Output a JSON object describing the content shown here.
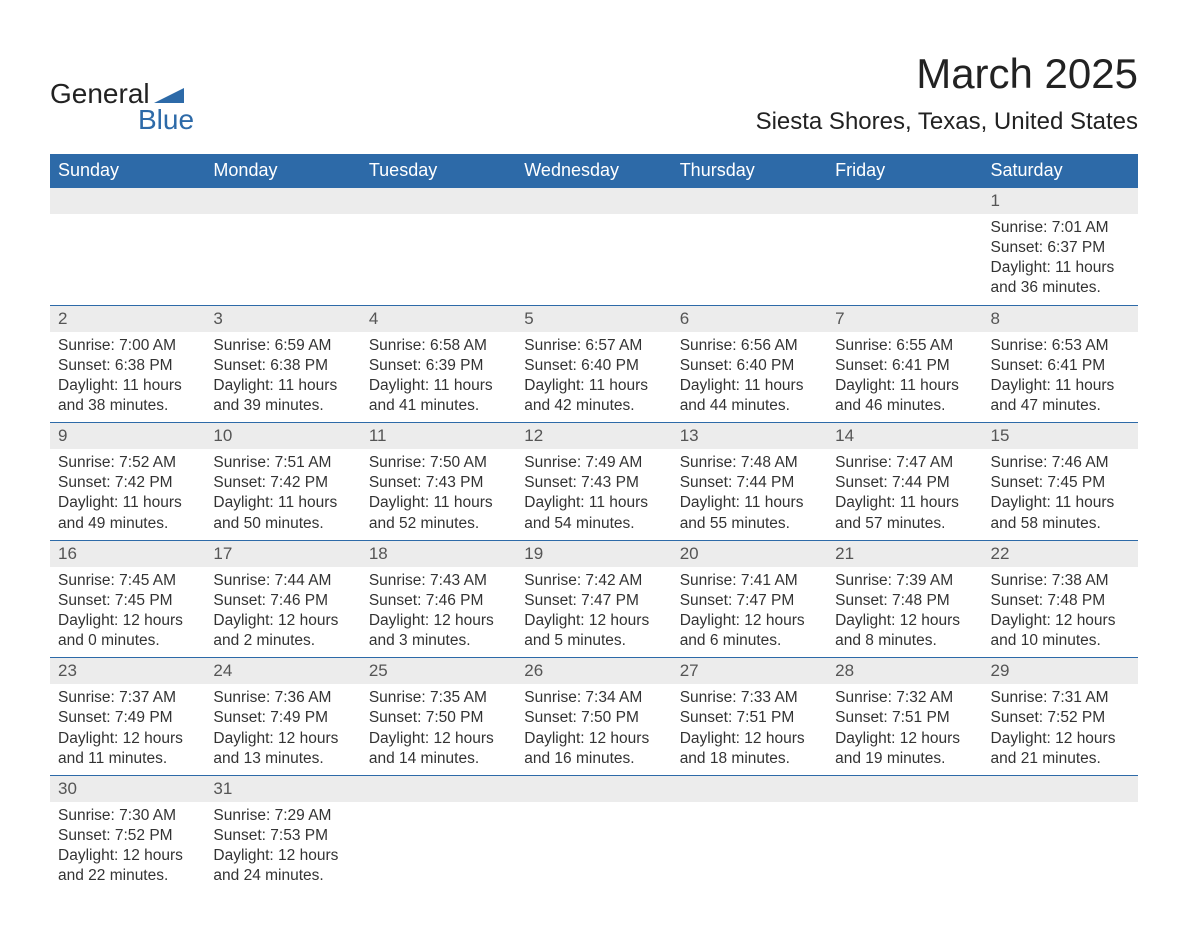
{
  "logo": {
    "line1": "General",
    "line2": "Blue",
    "accent_color": "#2d6aa8"
  },
  "title": "March 2025",
  "location": "Siesta Shores, Texas, United States",
  "colors": {
    "header_bg": "#2d6aa8",
    "header_text": "#ffffff",
    "daynum_bg": "#ececec",
    "text": "#333333",
    "border": "#2d6aa8"
  },
  "weekdays": [
    "Sunday",
    "Monday",
    "Tuesday",
    "Wednesday",
    "Thursday",
    "Friday",
    "Saturday"
  ],
  "weeks": [
    [
      null,
      null,
      null,
      null,
      null,
      null,
      {
        "d": "1",
        "sr": "Sunrise: 7:01 AM",
        "ss": "Sunset: 6:37 PM",
        "dl1": "Daylight: 11 hours",
        "dl2": "and 36 minutes."
      }
    ],
    [
      {
        "d": "2",
        "sr": "Sunrise: 7:00 AM",
        "ss": "Sunset: 6:38 PM",
        "dl1": "Daylight: 11 hours",
        "dl2": "and 38 minutes."
      },
      {
        "d": "3",
        "sr": "Sunrise: 6:59 AM",
        "ss": "Sunset: 6:38 PM",
        "dl1": "Daylight: 11 hours",
        "dl2": "and 39 minutes."
      },
      {
        "d": "4",
        "sr": "Sunrise: 6:58 AM",
        "ss": "Sunset: 6:39 PM",
        "dl1": "Daylight: 11 hours",
        "dl2": "and 41 minutes."
      },
      {
        "d": "5",
        "sr": "Sunrise: 6:57 AM",
        "ss": "Sunset: 6:40 PM",
        "dl1": "Daylight: 11 hours",
        "dl2": "and 42 minutes."
      },
      {
        "d": "6",
        "sr": "Sunrise: 6:56 AM",
        "ss": "Sunset: 6:40 PM",
        "dl1": "Daylight: 11 hours",
        "dl2": "and 44 minutes."
      },
      {
        "d": "7",
        "sr": "Sunrise: 6:55 AM",
        "ss": "Sunset: 6:41 PM",
        "dl1": "Daylight: 11 hours",
        "dl2": "and 46 minutes."
      },
      {
        "d": "8",
        "sr": "Sunrise: 6:53 AM",
        "ss": "Sunset: 6:41 PM",
        "dl1": "Daylight: 11 hours",
        "dl2": "and 47 minutes."
      }
    ],
    [
      {
        "d": "9",
        "sr": "Sunrise: 7:52 AM",
        "ss": "Sunset: 7:42 PM",
        "dl1": "Daylight: 11 hours",
        "dl2": "and 49 minutes."
      },
      {
        "d": "10",
        "sr": "Sunrise: 7:51 AM",
        "ss": "Sunset: 7:42 PM",
        "dl1": "Daylight: 11 hours",
        "dl2": "and 50 minutes."
      },
      {
        "d": "11",
        "sr": "Sunrise: 7:50 AM",
        "ss": "Sunset: 7:43 PM",
        "dl1": "Daylight: 11 hours",
        "dl2": "and 52 minutes."
      },
      {
        "d": "12",
        "sr": "Sunrise: 7:49 AM",
        "ss": "Sunset: 7:43 PM",
        "dl1": "Daylight: 11 hours",
        "dl2": "and 54 minutes."
      },
      {
        "d": "13",
        "sr": "Sunrise: 7:48 AM",
        "ss": "Sunset: 7:44 PM",
        "dl1": "Daylight: 11 hours",
        "dl2": "and 55 minutes."
      },
      {
        "d": "14",
        "sr": "Sunrise: 7:47 AM",
        "ss": "Sunset: 7:44 PM",
        "dl1": "Daylight: 11 hours",
        "dl2": "and 57 minutes."
      },
      {
        "d": "15",
        "sr": "Sunrise: 7:46 AM",
        "ss": "Sunset: 7:45 PM",
        "dl1": "Daylight: 11 hours",
        "dl2": "and 58 minutes."
      }
    ],
    [
      {
        "d": "16",
        "sr": "Sunrise: 7:45 AM",
        "ss": "Sunset: 7:45 PM",
        "dl1": "Daylight: 12 hours",
        "dl2": "and 0 minutes."
      },
      {
        "d": "17",
        "sr": "Sunrise: 7:44 AM",
        "ss": "Sunset: 7:46 PM",
        "dl1": "Daylight: 12 hours",
        "dl2": "and 2 minutes."
      },
      {
        "d": "18",
        "sr": "Sunrise: 7:43 AM",
        "ss": "Sunset: 7:46 PM",
        "dl1": "Daylight: 12 hours",
        "dl2": "and 3 minutes."
      },
      {
        "d": "19",
        "sr": "Sunrise: 7:42 AM",
        "ss": "Sunset: 7:47 PM",
        "dl1": "Daylight: 12 hours",
        "dl2": "and 5 minutes."
      },
      {
        "d": "20",
        "sr": "Sunrise: 7:41 AM",
        "ss": "Sunset: 7:47 PM",
        "dl1": "Daylight: 12 hours",
        "dl2": "and 6 minutes."
      },
      {
        "d": "21",
        "sr": "Sunrise: 7:39 AM",
        "ss": "Sunset: 7:48 PM",
        "dl1": "Daylight: 12 hours",
        "dl2": "and 8 minutes."
      },
      {
        "d": "22",
        "sr": "Sunrise: 7:38 AM",
        "ss": "Sunset: 7:48 PM",
        "dl1": "Daylight: 12 hours",
        "dl2": "and 10 minutes."
      }
    ],
    [
      {
        "d": "23",
        "sr": "Sunrise: 7:37 AM",
        "ss": "Sunset: 7:49 PM",
        "dl1": "Daylight: 12 hours",
        "dl2": "and 11 minutes."
      },
      {
        "d": "24",
        "sr": "Sunrise: 7:36 AM",
        "ss": "Sunset: 7:49 PM",
        "dl1": "Daylight: 12 hours",
        "dl2": "and 13 minutes."
      },
      {
        "d": "25",
        "sr": "Sunrise: 7:35 AM",
        "ss": "Sunset: 7:50 PM",
        "dl1": "Daylight: 12 hours",
        "dl2": "and 14 minutes."
      },
      {
        "d": "26",
        "sr": "Sunrise: 7:34 AM",
        "ss": "Sunset: 7:50 PM",
        "dl1": "Daylight: 12 hours",
        "dl2": "and 16 minutes."
      },
      {
        "d": "27",
        "sr": "Sunrise: 7:33 AM",
        "ss": "Sunset: 7:51 PM",
        "dl1": "Daylight: 12 hours",
        "dl2": "and 18 minutes."
      },
      {
        "d": "28",
        "sr": "Sunrise: 7:32 AM",
        "ss": "Sunset: 7:51 PM",
        "dl1": "Daylight: 12 hours",
        "dl2": "and 19 minutes."
      },
      {
        "d": "29",
        "sr": "Sunrise: 7:31 AM",
        "ss": "Sunset: 7:52 PM",
        "dl1": "Daylight: 12 hours",
        "dl2": "and 21 minutes."
      }
    ],
    [
      {
        "d": "30",
        "sr": "Sunrise: 7:30 AM",
        "ss": "Sunset: 7:52 PM",
        "dl1": "Daylight: 12 hours",
        "dl2": "and 22 minutes."
      },
      {
        "d": "31",
        "sr": "Sunrise: 7:29 AM",
        "ss": "Sunset: 7:53 PM",
        "dl1": "Daylight: 12 hours",
        "dl2": "and 24 minutes."
      },
      null,
      null,
      null,
      null,
      null
    ]
  ]
}
